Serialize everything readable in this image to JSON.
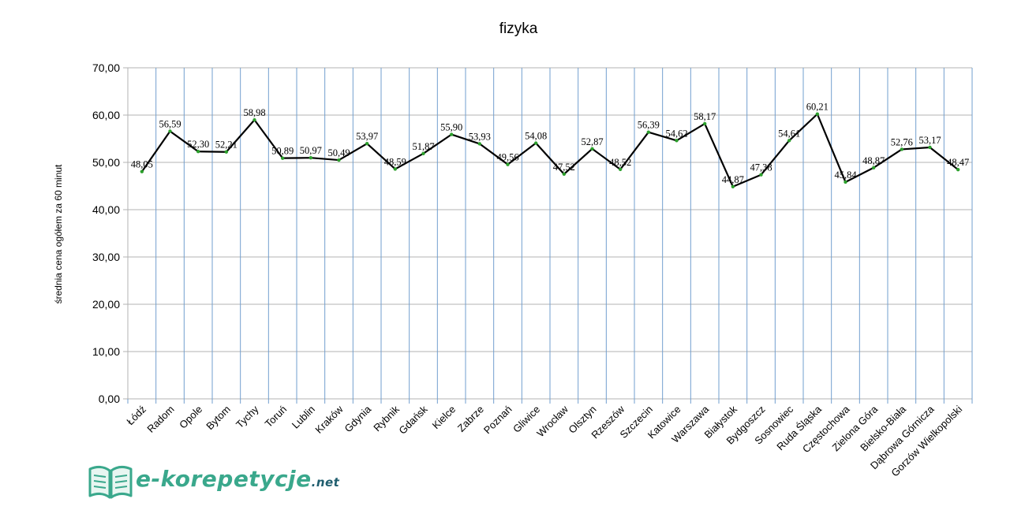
{
  "chart_data": {
    "type": "line",
    "title": "fizyka",
    "xlabel": "",
    "ylabel": "średnia cena ogółem za 60 minut",
    "ylim": [
      0,
      70
    ],
    "yticks": [
      "0,00",
      "10,00",
      "20,00",
      "30,00",
      "40,00",
      "50,00",
      "60,00",
      "70,00"
    ],
    "grid": true,
    "legend": "none",
    "colors": {
      "line": "#000000",
      "point": "#2ca02c",
      "vgrid": "#729fcf",
      "hgrid": "#b3b3b3"
    },
    "categories": [
      "Łódź",
      "Radom",
      "Opole",
      "Bytom",
      "Tychy",
      "Toruń",
      "Lublin",
      "Kraków",
      "Gdynia",
      "Rybnik",
      "Gdańsk",
      "Kielce",
      "Zabrze",
      "Poznań",
      "Gliwice",
      "Wrocław",
      "Olsztyn",
      "Rzeszów",
      "Szczecin",
      "Katowice",
      "Warszawa",
      "Białystok",
      "Bydgoszcz",
      "Sosnowiec",
      "Ruda Śląska",
      "Częstochowa",
      "Zielona Góra",
      "Bielsko-Biała",
      "Dąbrowa Górnicza",
      "Gorzów Wielkopolski"
    ],
    "values": [
      48.05,
      56.59,
      52.3,
      52.21,
      58.98,
      50.89,
      50.97,
      50.49,
      53.97,
      48.59,
      51.87,
      55.9,
      53.93,
      49.56,
      54.08,
      47.52,
      52.87,
      48.52,
      56.39,
      54.62,
      58.17,
      44.87,
      47.38,
      54.61,
      60.21,
      45.84,
      48.87,
      52.76,
      53.17,
      48.47
    ],
    "data_labels": [
      "48,05",
      "56,59",
      "52,30",
      "52,21",
      "58,98",
      "50,89",
      "50,97",
      "50,49",
      "53,97",
      "48,59",
      "51,87",
      "55,90",
      "53,93",
      "49,56",
      "54,08",
      "47,52",
      "52,87",
      "48,52",
      "56,39",
      "54,62",
      "58,17",
      "44,87",
      "47,38",
      "54,61",
      "60,21",
      "45,84",
      "48,87",
      "52,76",
      "53,17",
      "48,47"
    ]
  },
  "logo": {
    "name": "e-korepetycje",
    "tld": ".net",
    "icon": "open-book-icon",
    "color": "#3aa88c"
  }
}
